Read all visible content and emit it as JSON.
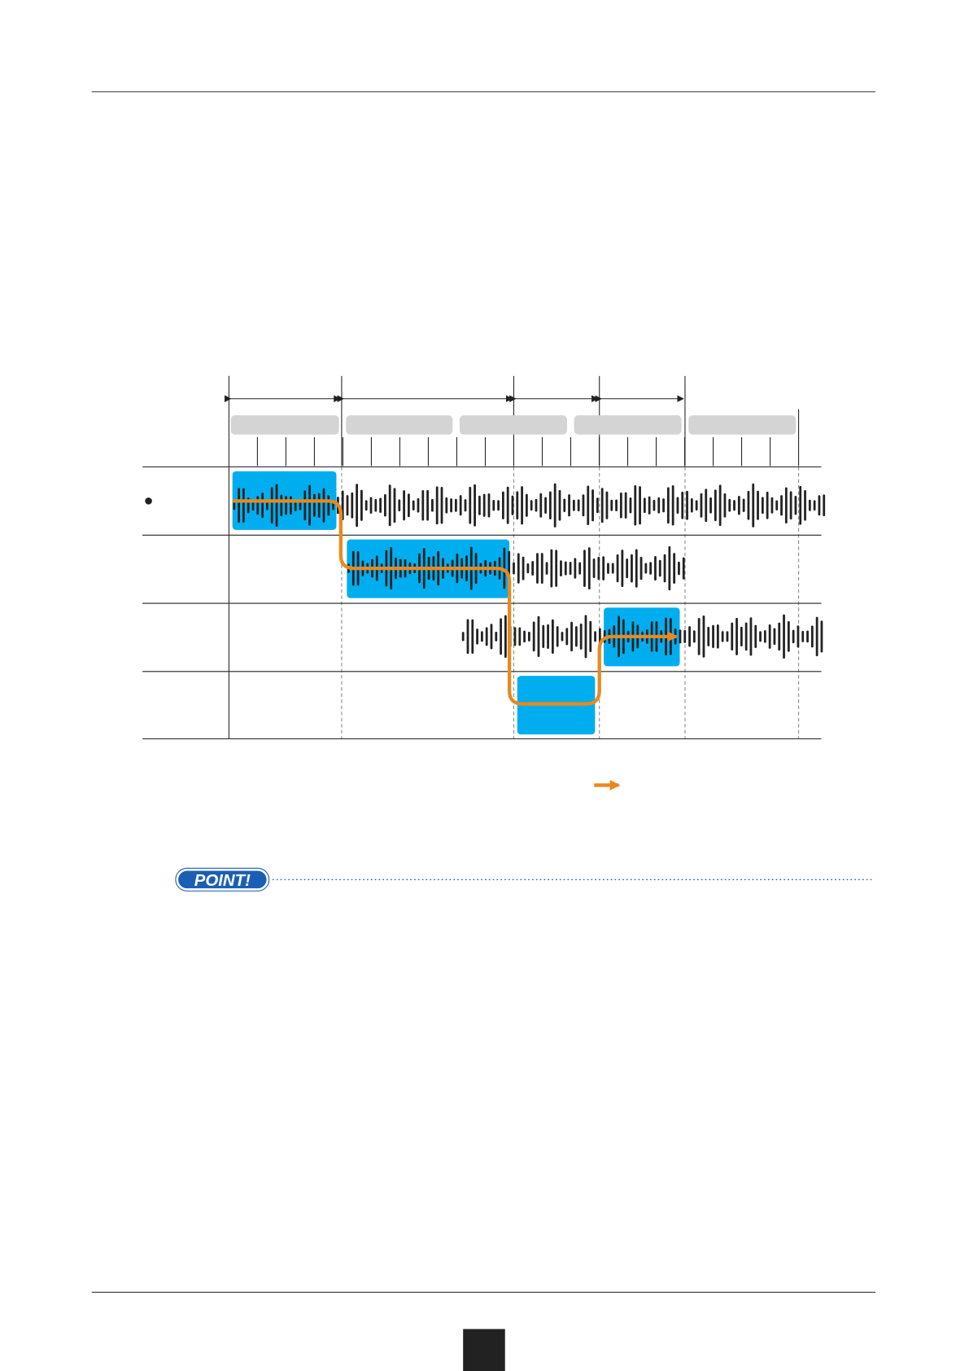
{
  "point_badge": "POINT!"
}
